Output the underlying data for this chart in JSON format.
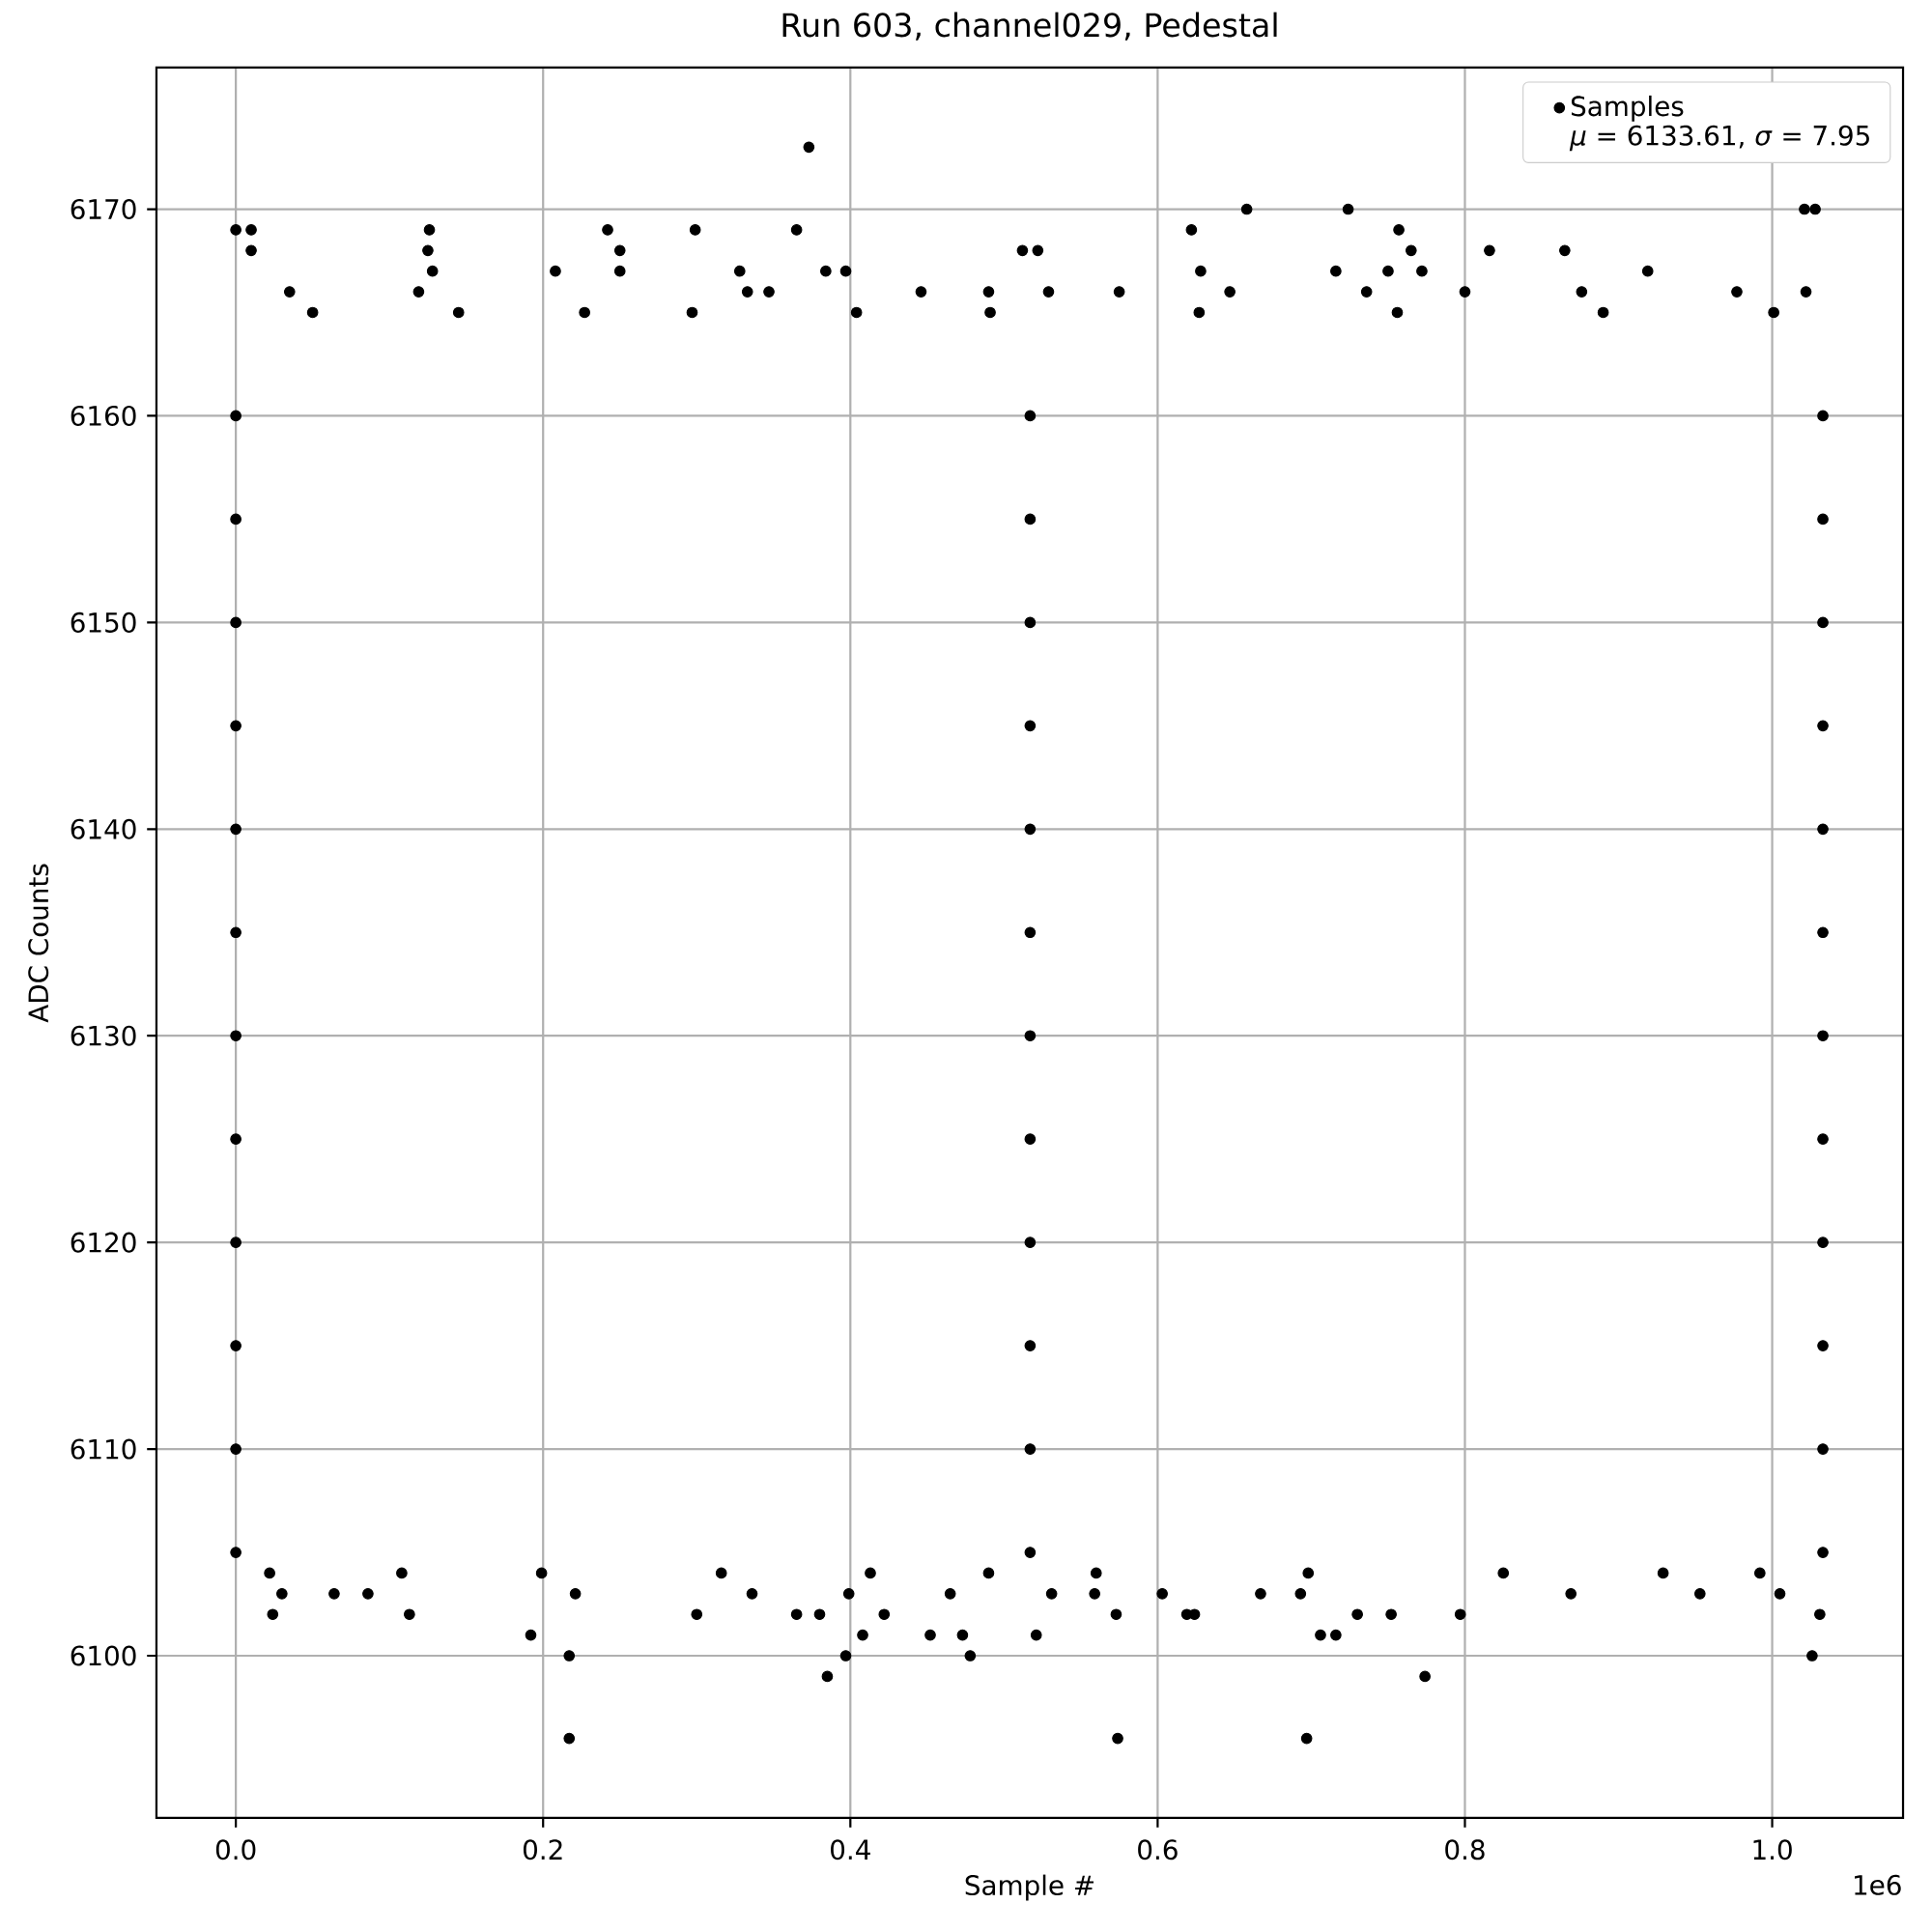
{
  "chart_data": {
    "type": "scatter",
    "title": "Run 603, channel029, Pedestal",
    "xlabel": "Sample #",
    "ylabel": "ADC Counts",
    "annotations": [
      "*μ* = 6133.61, *σ* = 7.95",
      "1e6"
    ],
    "xlim": [
      -0.051675,
      1.085175
    ],
    "ylim": [
      6092.15,
      6176.85
    ],
    "xticks": [
      {
        "value": 0,
        "label": "0.0"
      },
      {
        "value": 0.2,
        "label": "0.2"
      },
      {
        "value": 0.4,
        "label": "0.4"
      },
      {
        "value": 0.6,
        "label": "0.6"
      },
      {
        "value": 0.8,
        "label": "0.8"
      },
      {
        "value": 1,
        "label": "1.0"
      }
    ],
    "yticks": [
      6100,
      6110,
      6120,
      6130,
      6140,
      6150,
      6160,
      6170
    ],
    "grid": true,
    "legend": "top right",
    "marker": "circle",
    "series": [
      {
        "name": "Samples",
        "color": "#000000",
        "x": [
          0.373,
          0.658,
          0.724,
          1.021,
          1.028,
          0,
          0.01,
          0.126,
          0.242,
          0.299,
          0.365,
          0.622,
          0.757,
          0.01,
          0.125,
          0.25,
          0.512,
          0.522,
          0.765,
          0.816,
          0.865,
          0.128,
          0.208,
          0.25,
          0.328,
          0.384,
          0.397,
          0.628,
          0.716,
          0.75,
          0.772,
          0.919,
          0.035,
          0.119,
          0.333,
          0.347,
          0.446,
          0.49,
          0.529,
          0.575,
          0.647,
          0.736,
          0.8,
          0.876,
          0.977,
          1.022,
          0.05,
          0.145,
          0.227,
          0.297,
          0.404,
          0.491,
          0.627,
          0.756,
          0.89,
          1.001,
          0.217,
          0.574,
          0.697,
          0.385,
          0.774,
          0.217,
          0.397,
          0.478,
          1.026,
          0.192,
          0.408,
          0.452,
          0.473,
          0.521,
          0.706,
          0.716,
          0.024,
          0.113,
          0.3,
          0.365,
          0.38,
          0.422,
          0.573,
          0.619,
          0.624,
          0.73,
          0.752,
          0.797,
          1.031,
          0.03,
          0.064,
          0.086,
          0.221,
          0.336,
          0.399,
          0.465,
          0.531,
          0.559,
          0.603,
          0.667,
          0.693,
          0.869,
          0.953,
          1.005,
          0.022,
          0.108,
          0.199,
          0.316,
          0.413,
          0.49,
          0.56,
          0.698,
          0.825,
          0.929,
          0.992,
          0,
          0.517,
          1.033,
          0,
          0.517,
          1.033,
          0,
          0.517,
          1.033,
          0,
          0.517,
          1.033,
          0,
          0.517,
          1.033,
          0,
          0.517,
          1.033,
          0,
          0.517,
          1.033,
          0,
          0.517,
          1.033,
          0,
          0.517,
          1.033,
          0,
          0.517,
          1.033,
          0,
          0.517,
          1.033,
          0,
          0.517,
          1.033
        ],
        "values": [
          6173,
          6170,
          6170,
          6170,
          6170,
          6169,
          6169,
          6169,
          6169,
          6169,
          6169,
          6169,
          6169,
          6168,
          6168,
          6168,
          6168,
          6168,
          6168,
          6168,
          6168,
          6167,
          6167,
          6167,
          6167,
          6167,
          6167,
          6167,
          6167,
          6167,
          6167,
          6167,
          6166,
          6166,
          6166,
          6166,
          6166,
          6166,
          6166,
          6166,
          6166,
          6166,
          6166,
          6166,
          6166,
          6166,
          6165,
          6165,
          6165,
          6165,
          6165,
          6165,
          6165,
          6165,
          6165,
          6165,
          6096,
          6096,
          6096,
          6099,
          6099,
          6100,
          6100,
          6100,
          6100,
          6101,
          6101,
          6101,
          6101,
          6101,
          6101,
          6101,
          6102,
          6102,
          6102,
          6102,
          6102,
          6102,
          6102,
          6102,
          6102,
          6102,
          6102,
          6102,
          6102,
          6103,
          6103,
          6103,
          6103,
          6103,
          6103,
          6103,
          6103,
          6103,
          6103,
          6103,
          6103,
          6103,
          6103,
          6103,
          6104,
          6104,
          6104,
          6104,
          6104,
          6104,
          6104,
          6104,
          6104,
          6104,
          6104,
          6105,
          6105,
          6105,
          6110,
          6110,
          6110,
          6115,
          6115,
          6115,
          6120,
          6120,
          6120,
          6125,
          6125,
          6125,
          6130,
          6130,
          6130,
          6135,
          6135,
          6135,
          6140,
          6140,
          6140,
          6145,
          6145,
          6145,
          6150,
          6150,
          6150,
          6155,
          6155,
          6155,
          6160,
          6160,
          6160
        ]
      }
    ]
  }
}
